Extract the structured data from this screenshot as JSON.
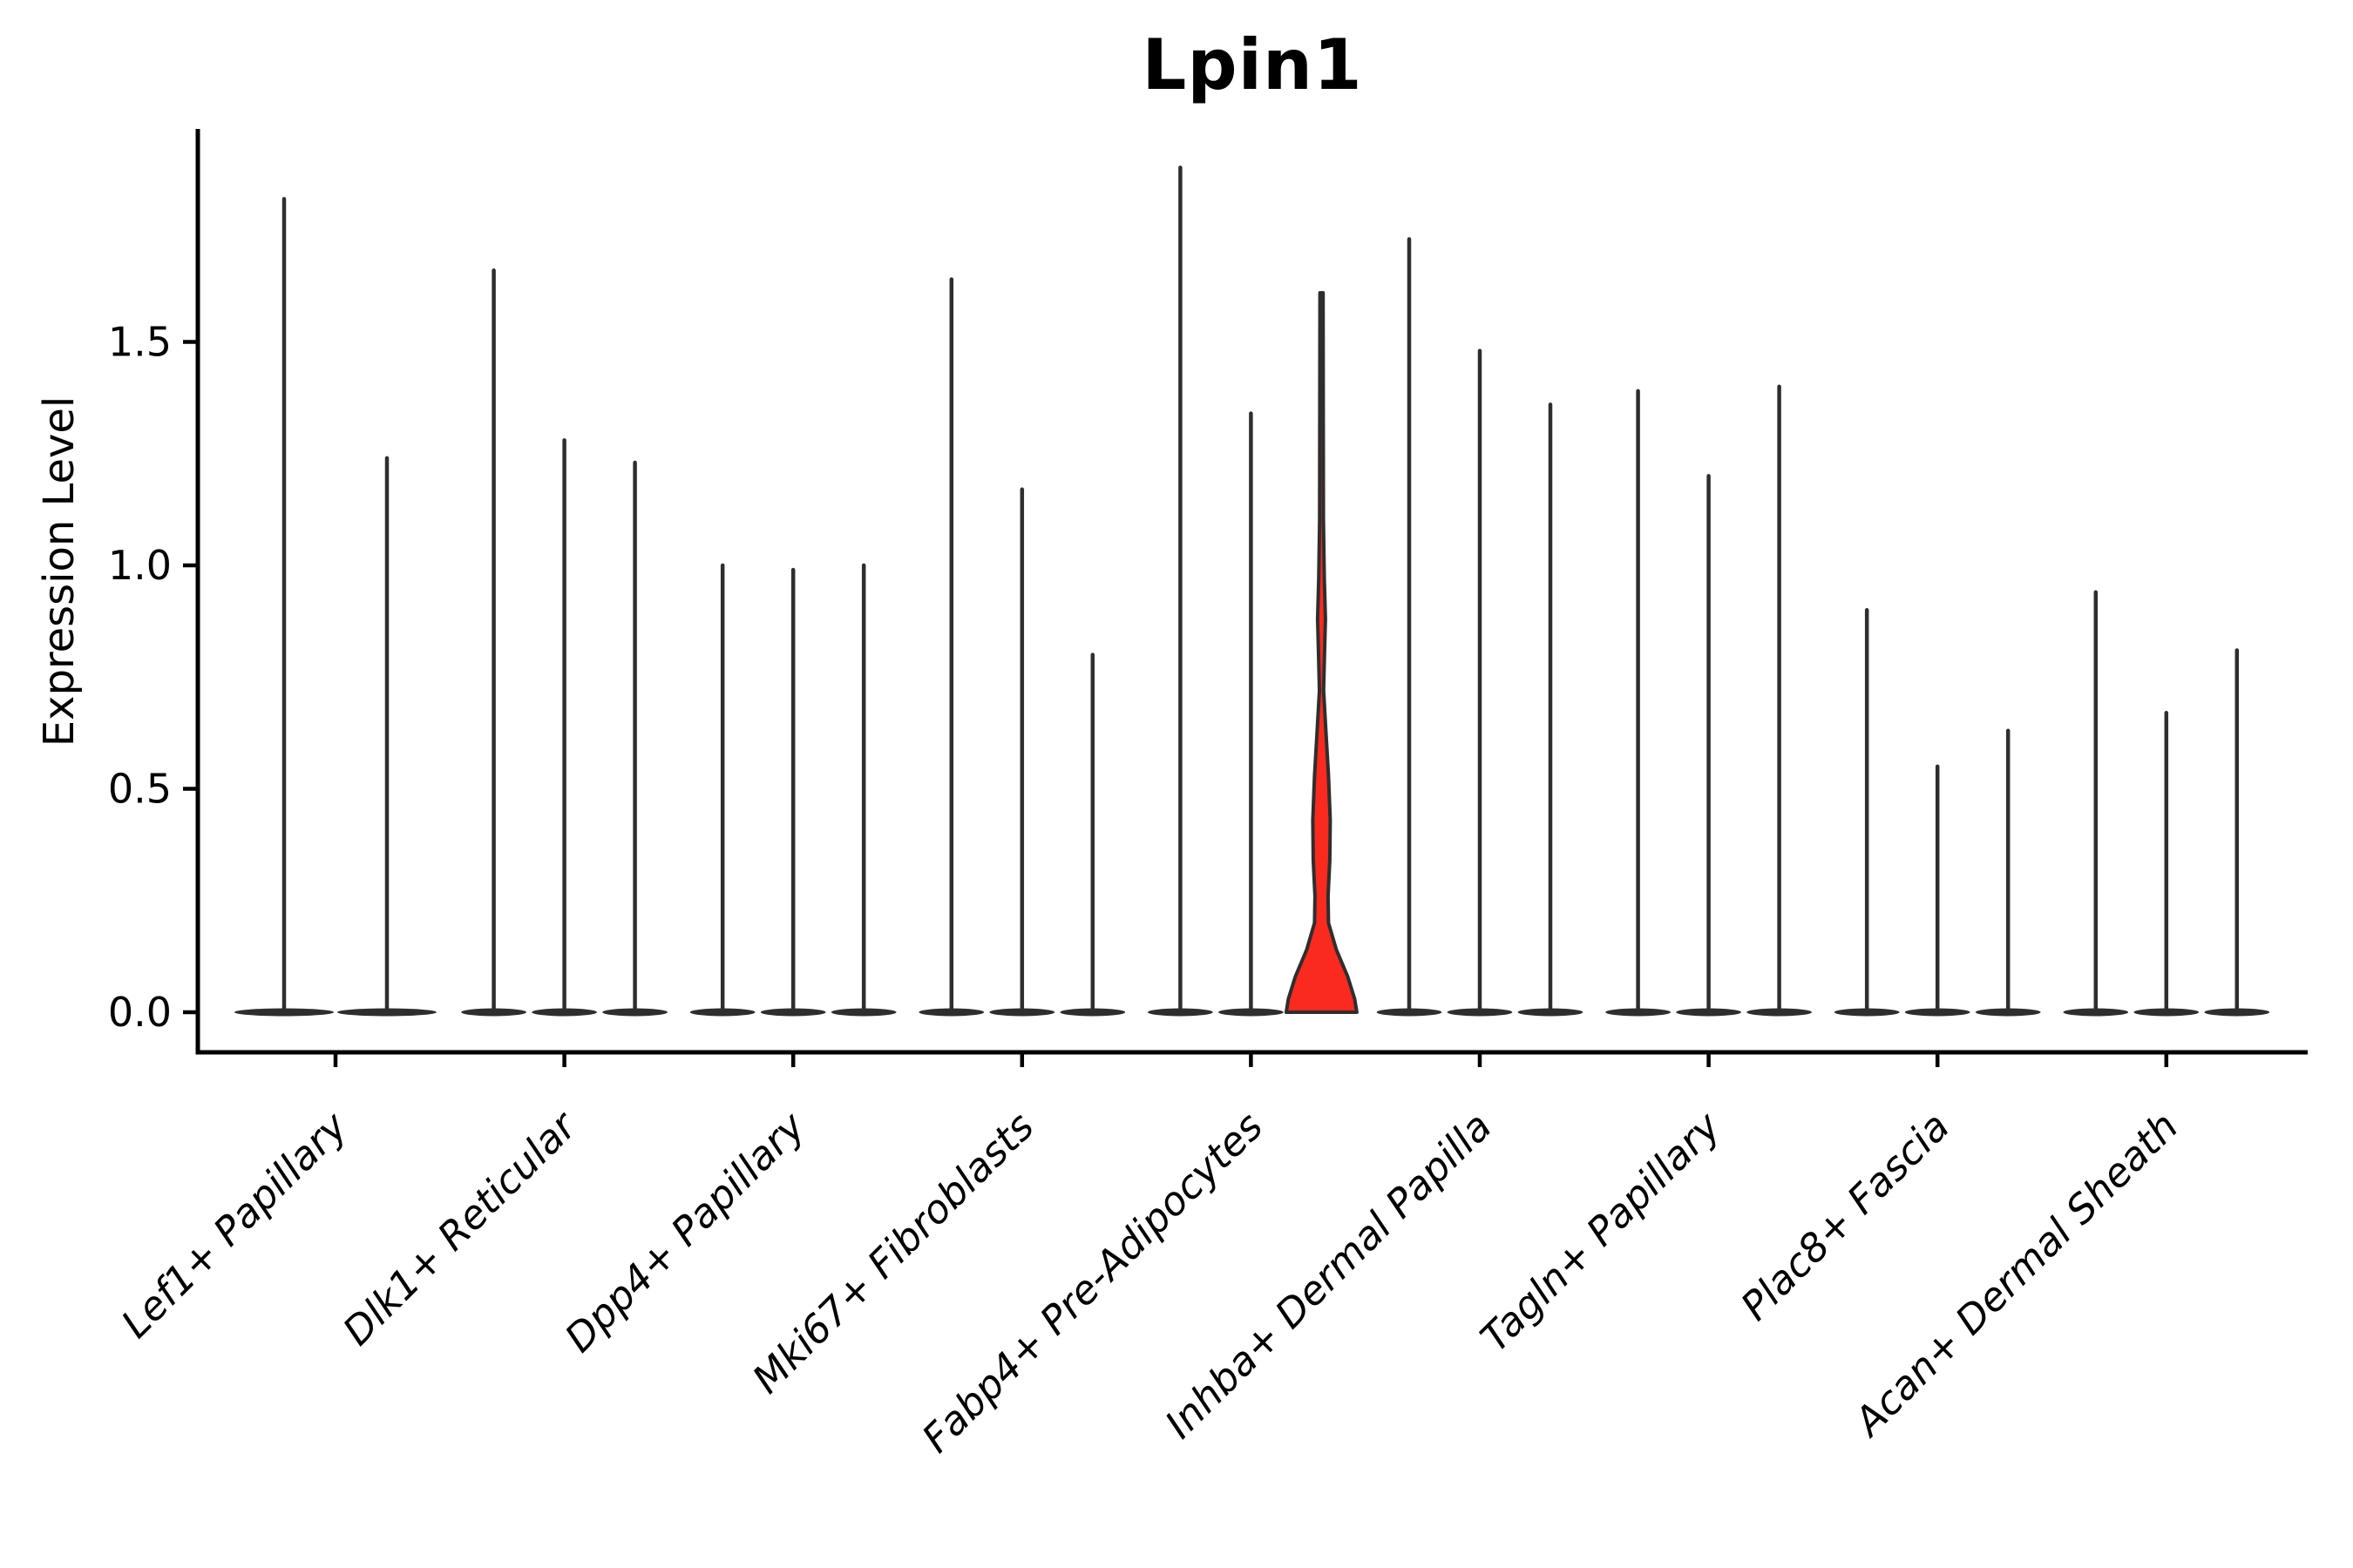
{
  "title": "Lpin1",
  "ylabel": "Expression Level",
  "colors": {
    "highlight_fill": "#fa2a1e",
    "violin_stroke": "#2e2e2e",
    "axis": "#000000"
  },
  "chart_data": {
    "type": "violin",
    "title": "Lpin1",
    "xlabel": "",
    "ylabel": "Expression Level",
    "ylim": [
      -0.09,
      1.98
    ],
    "yticks": [
      "0.0",
      "0.5",
      "1.0",
      "1.5"
    ],
    "ytick_values": [
      0.0,
      0.5,
      1.0,
      1.5
    ],
    "grid": false,
    "legend": "none",
    "categories": [
      "Lef1+ Papillary",
      "Dlk1+ Reticular",
      "Dpp4+ Papillary",
      "Mki67+ Fibroblasts",
      "Fabp4+ Pre-Adipocytes",
      "Inhba+ Dermal Papilla",
      "Tagln+ Papillary",
      "Plac8+ Fascia",
      "Acan+ Dermal Sheath"
    ],
    "groups": [
      {
        "category": "Lef1+ Papillary",
        "violin_max": [
          1.82,
          1.24
        ],
        "highlight_index": -1
      },
      {
        "category": "Dlk1+ Reticular",
        "violin_max": [
          1.66,
          1.28,
          1.23
        ],
        "highlight_index": -1
      },
      {
        "category": "Dpp4+ Papillary",
        "violin_max": [
          1.0,
          0.99,
          1.0
        ],
        "highlight_index": -1
      },
      {
        "category": "Mki67+ Fibroblasts",
        "violin_max": [
          1.64,
          1.17,
          0.8
        ],
        "highlight_index": -1
      },
      {
        "category": "Fabp4+ Pre-Adipocytes",
        "violin_max": [
          1.89,
          1.34,
          1.61
        ],
        "highlight_index": 2
      },
      {
        "category": "Inhba+ Dermal Papilla",
        "violin_max": [
          1.73,
          1.48,
          1.36
        ],
        "highlight_index": -1
      },
      {
        "category": "Tagln+ Papillary",
        "violin_max": [
          1.39,
          1.2,
          1.4
        ],
        "highlight_index": -1
      },
      {
        "category": "Plac8+ Fascia",
        "violin_max": [
          0.9,
          0.55,
          0.63
        ],
        "highlight_index": -1
      },
      {
        "category": "Acan+ Dermal Sheath",
        "violin_max": [
          0.94,
          0.67,
          0.81
        ],
        "highlight_index": -1
      }
    ],
    "highlight_violin_profile": [
      [
        1.61,
        1.8
      ],
      [
        1.1,
        2.2
      ],
      [
        0.97,
        3.2
      ],
      [
        0.88,
        4.5
      ],
      [
        0.8,
        3.4
      ],
      [
        0.72,
        2.4
      ],
      [
        0.63,
        5.0
      ],
      [
        0.53,
        8.0
      ],
      [
        0.43,
        10.0
      ],
      [
        0.34,
        9.5
      ],
      [
        0.26,
        7.5
      ],
      [
        0.2,
        8.0
      ],
      [
        0.14,
        17.0
      ],
      [
        0.08,
        30.0
      ],
      [
        0.03,
        38.0
      ],
      [
        0.0,
        40.5
      ]
    ]
  }
}
